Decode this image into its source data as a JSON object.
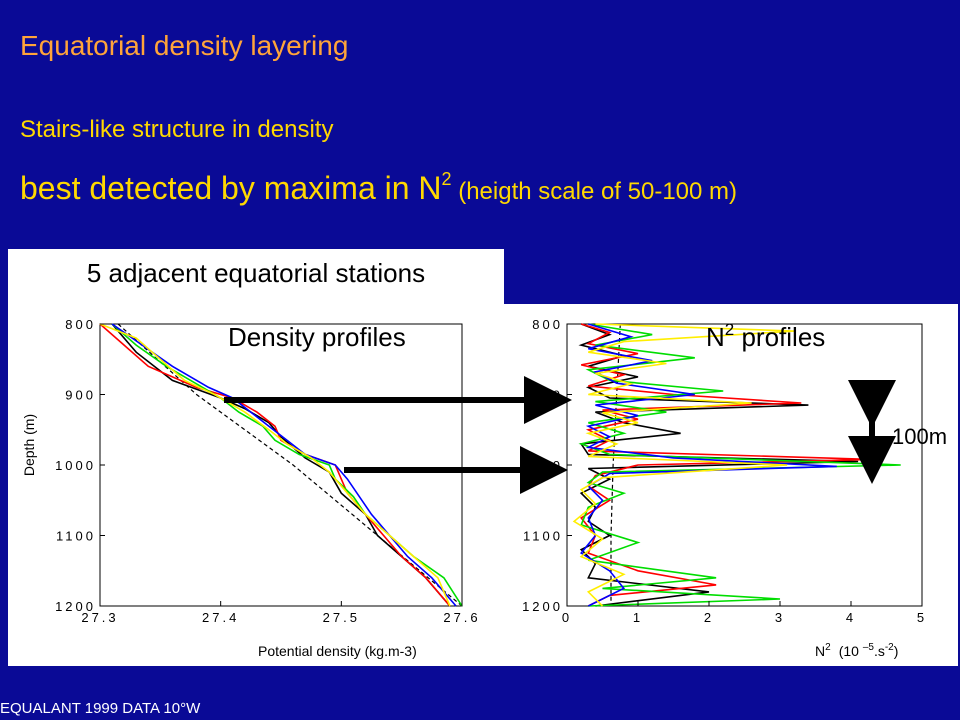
{
  "slide": {
    "title": "Equatorial density layering",
    "line1": "Stairs-like structure in density",
    "line2_main": "best detected by maxima in N",
    "line2_sup": "2",
    "line2_paren": " (heigth scale of 50-100 m)",
    "footer": "EQUALANT 1999 DATA 10°W",
    "stations_title": "5 adjacent equatorial stations"
  },
  "colors": {
    "background": "#0a0a96",
    "title": "#ffa43a",
    "text": "#ffd800",
    "series": [
      "#000000",
      "#ff0000",
      "#00dd00",
      "#0000ff",
      "#ffee00"
    ]
  },
  "chart_data": [
    {
      "type": "line",
      "title": "Density profiles",
      "xlabel": "Potential density (kg.m-3)",
      "ylabel": "Depth (m)",
      "xlim": [
        27.3,
        27.6
      ],
      "ylim": [
        1200,
        800
      ],
      "xticks": [
        "27.3",
        "27.4",
        "27.5",
        "27.6"
      ],
      "yticks": [
        "800",
        "900",
        "1000",
        "1100",
        "1200"
      ],
      "grid": false,
      "reference": {
        "style": "dashed",
        "depth": [
          800,
          900,
          1000,
          1100,
          1200
        ],
        "value": [
          27.315,
          27.38,
          27.46,
          27.53,
          27.6
        ]
      },
      "series": [
        {
          "color": "#000000",
          "depth": [
            800,
            840,
            880,
            905,
            920,
            940,
            960,
            975,
            990,
            1010,
            1040,
            1070,
            1100,
            1130,
            1160,
            1200
          ],
          "value": [
            27.31,
            27.33,
            27.36,
            27.4,
            27.42,
            27.44,
            27.45,
            27.46,
            27.47,
            27.49,
            27.5,
            27.52,
            27.53,
            27.55,
            27.57,
            27.59
          ]
        },
        {
          "color": "#ff0000",
          "depth": [
            800,
            830,
            860,
            890,
            905,
            925,
            945,
            965,
            985,
            1000,
            1020,
            1040,
            1070,
            1100,
            1130,
            1160,
            1200
          ],
          "value": [
            27.3,
            27.32,
            27.34,
            27.38,
            27.41,
            27.43,
            27.445,
            27.45,
            27.47,
            27.495,
            27.5,
            27.505,
            27.52,
            27.535,
            27.55,
            27.57,
            27.59
          ]
        },
        {
          "color": "#00dd00",
          "depth": [
            800,
            830,
            860,
            890,
            905,
            925,
            945,
            965,
            985,
            1000,
            1020,
            1045,
            1070,
            1100,
            1130,
            1160,
            1200
          ],
          "value": [
            27.31,
            27.33,
            27.355,
            27.385,
            27.4,
            27.415,
            27.435,
            27.445,
            27.465,
            27.49,
            27.495,
            27.51,
            27.52,
            27.54,
            27.56,
            27.585,
            27.6
          ]
        },
        {
          "color": "#0000ff",
          "depth": [
            800,
            830,
            860,
            890,
            905,
            925,
            945,
            965,
            985,
            1000,
            1020,
            1045,
            1070,
            1100,
            1130,
            1160,
            1200
          ],
          "value": [
            27.31,
            27.335,
            27.36,
            27.39,
            27.41,
            27.425,
            27.44,
            27.455,
            27.47,
            27.495,
            27.505,
            27.515,
            27.525,
            27.54,
            27.555,
            27.575,
            27.595
          ]
        },
        {
          "color": "#ffee00",
          "depth": [
            800,
            820,
            850,
            880,
            900,
            925,
            950,
            970,
            990,
            1010,
            1040,
            1070,
            1100,
            1130,
            1160,
            1200
          ],
          "value": [
            27.3,
            27.33,
            27.35,
            27.37,
            27.395,
            27.42,
            27.44,
            27.455,
            27.475,
            27.49,
            27.505,
            27.52,
            27.54,
            27.56,
            27.58,
            27.59
          ]
        }
      ]
    },
    {
      "type": "line",
      "title": "N2 profiles",
      "title_main": "N",
      "title_sup": "2",
      "title_rest": " profiles",
      "xlabel": "N2 (10 -5 .s-2)",
      "xlabel_n": "N",
      "xlabel_n_sup": "2",
      "xlabel_mid": "(10 ",
      "xlabel_exp": "–5",
      "xlabel_unit": ".s",
      "xlabel_unit_sup": "-2",
      "xlabel_close": ")",
      "ylabel": "Depth (m)",
      "xlim": [
        0,
        5
      ],
      "ylim": [
        1200,
        800
      ],
      "xticks": [
        "0",
        "1",
        "2",
        "3",
        "4",
        "5"
      ],
      "yticks": [
        "800",
        "900",
        "1000",
        "1100",
        "1200"
      ],
      "grid": false,
      "reference": {
        "style": "dashed",
        "depth": [
          800,
          900,
          1000,
          1100,
          1150,
          1200
        ],
        "value": [
          0.75,
          0.7,
          0.65,
          0.62,
          0.62,
          0.62
        ]
      },
      "series": [
        {
          "color": "#000000",
          "depth": [
            800,
            815,
            830,
            845,
            860,
            875,
            890,
            905,
            915,
            925,
            940,
            955,
            970,
            985,
            995,
            1005,
            1020,
            1040,
            1060,
            1080,
            1100,
            1120,
            1140,
            1160,
            1180,
            1200
          ],
          "value": [
            0.2,
            0.6,
            0.2,
            0.8,
            0.3,
            1.0,
            0.3,
            0.6,
            3.4,
            0.4,
            0.8,
            1.6,
            0.2,
            0.3,
            4.1,
            0.3,
            0.6,
            0.2,
            0.4,
            0.3,
            0.6,
            0.2,
            0.4,
            0.3,
            2.0,
            0.4
          ]
        },
        {
          "color": "#ff0000",
          "depth": [
            800,
            812,
            828,
            842,
            858,
            872,
            888,
            900,
            912,
            922,
            935,
            950,
            965,
            980,
            992,
            1000,
            1015,
            1030,
            1050,
            1075,
            1100,
            1125,
            1150,
            1170,
            1185,
            1200
          ],
          "value": [
            0.2,
            0.6,
            0.3,
            1.0,
            0.2,
            0.8,
            0.3,
            1.5,
            3.3,
            0.5,
            1.0,
            0.3,
            0.6,
            0.3,
            4.3,
            1.0,
            0.4,
            0.3,
            0.6,
            0.2,
            0.4,
            0.3,
            1.0,
            2.1,
            0.6,
            0.3
          ]
        },
        {
          "color": "#00dd00",
          "depth": [
            800,
            815,
            830,
            848,
            865,
            880,
            895,
            910,
            925,
            940,
            955,
            970,
            985,
            1000,
            1010,
            1025,
            1040,
            1060,
            1085,
            1110,
            1135,
            1160,
            1175,
            1190,
            1200
          ],
          "value": [
            0.3,
            1.2,
            0.4,
            1.8,
            0.3,
            0.6,
            2.2,
            0.4,
            1.4,
            0.3,
            0.8,
            0.2,
            0.6,
            4.7,
            0.5,
            0.3,
            0.8,
            0.3,
            0.2,
            1.0,
            0.3,
            2.1,
            0.5,
            3.0,
            0.3
          ]
        },
        {
          "color": "#0000ff",
          "depth": [
            800,
            818,
            835,
            852,
            868,
            884,
            900,
            915,
            930,
            945,
            960,
            975,
            990,
            1002,
            1012,
            1030,
            1050,
            1075,
            1100,
            1125,
            1150,
            1175,
            1200
          ],
          "value": [
            0.3,
            0.9,
            0.3,
            1.2,
            0.4,
            0.7,
            1.8,
            0.4,
            1.0,
            0.3,
            0.6,
            0.3,
            1.5,
            3.8,
            0.6,
            0.3,
            0.5,
            0.3,
            0.4,
            0.2,
            0.6,
            0.8,
            0.3
          ]
        },
        {
          "color": "#ffee00",
          "depth": [
            800,
            810,
            825,
            840,
            856,
            870,
            885,
            900,
            912,
            926,
            940,
            955,
            970,
            988,
            1000,
            1018,
            1035,
            1055,
            1080,
            1105,
            1130,
            1155,
            1180,
            1200
          ],
          "value": [
            0.4,
            3.2,
            0.8,
            0.3,
            1.4,
            0.4,
            0.9,
            0.3,
            2.6,
            0.5,
            1.0,
            0.3,
            0.7,
            0.3,
            3.1,
            0.5,
            0.2,
            0.4,
            0.1,
            0.5,
            0.2,
            0.8,
            0.3,
            0.5
          ]
        }
      ]
    }
  ],
  "annotations": {
    "scale_bar_label": "100m"
  }
}
